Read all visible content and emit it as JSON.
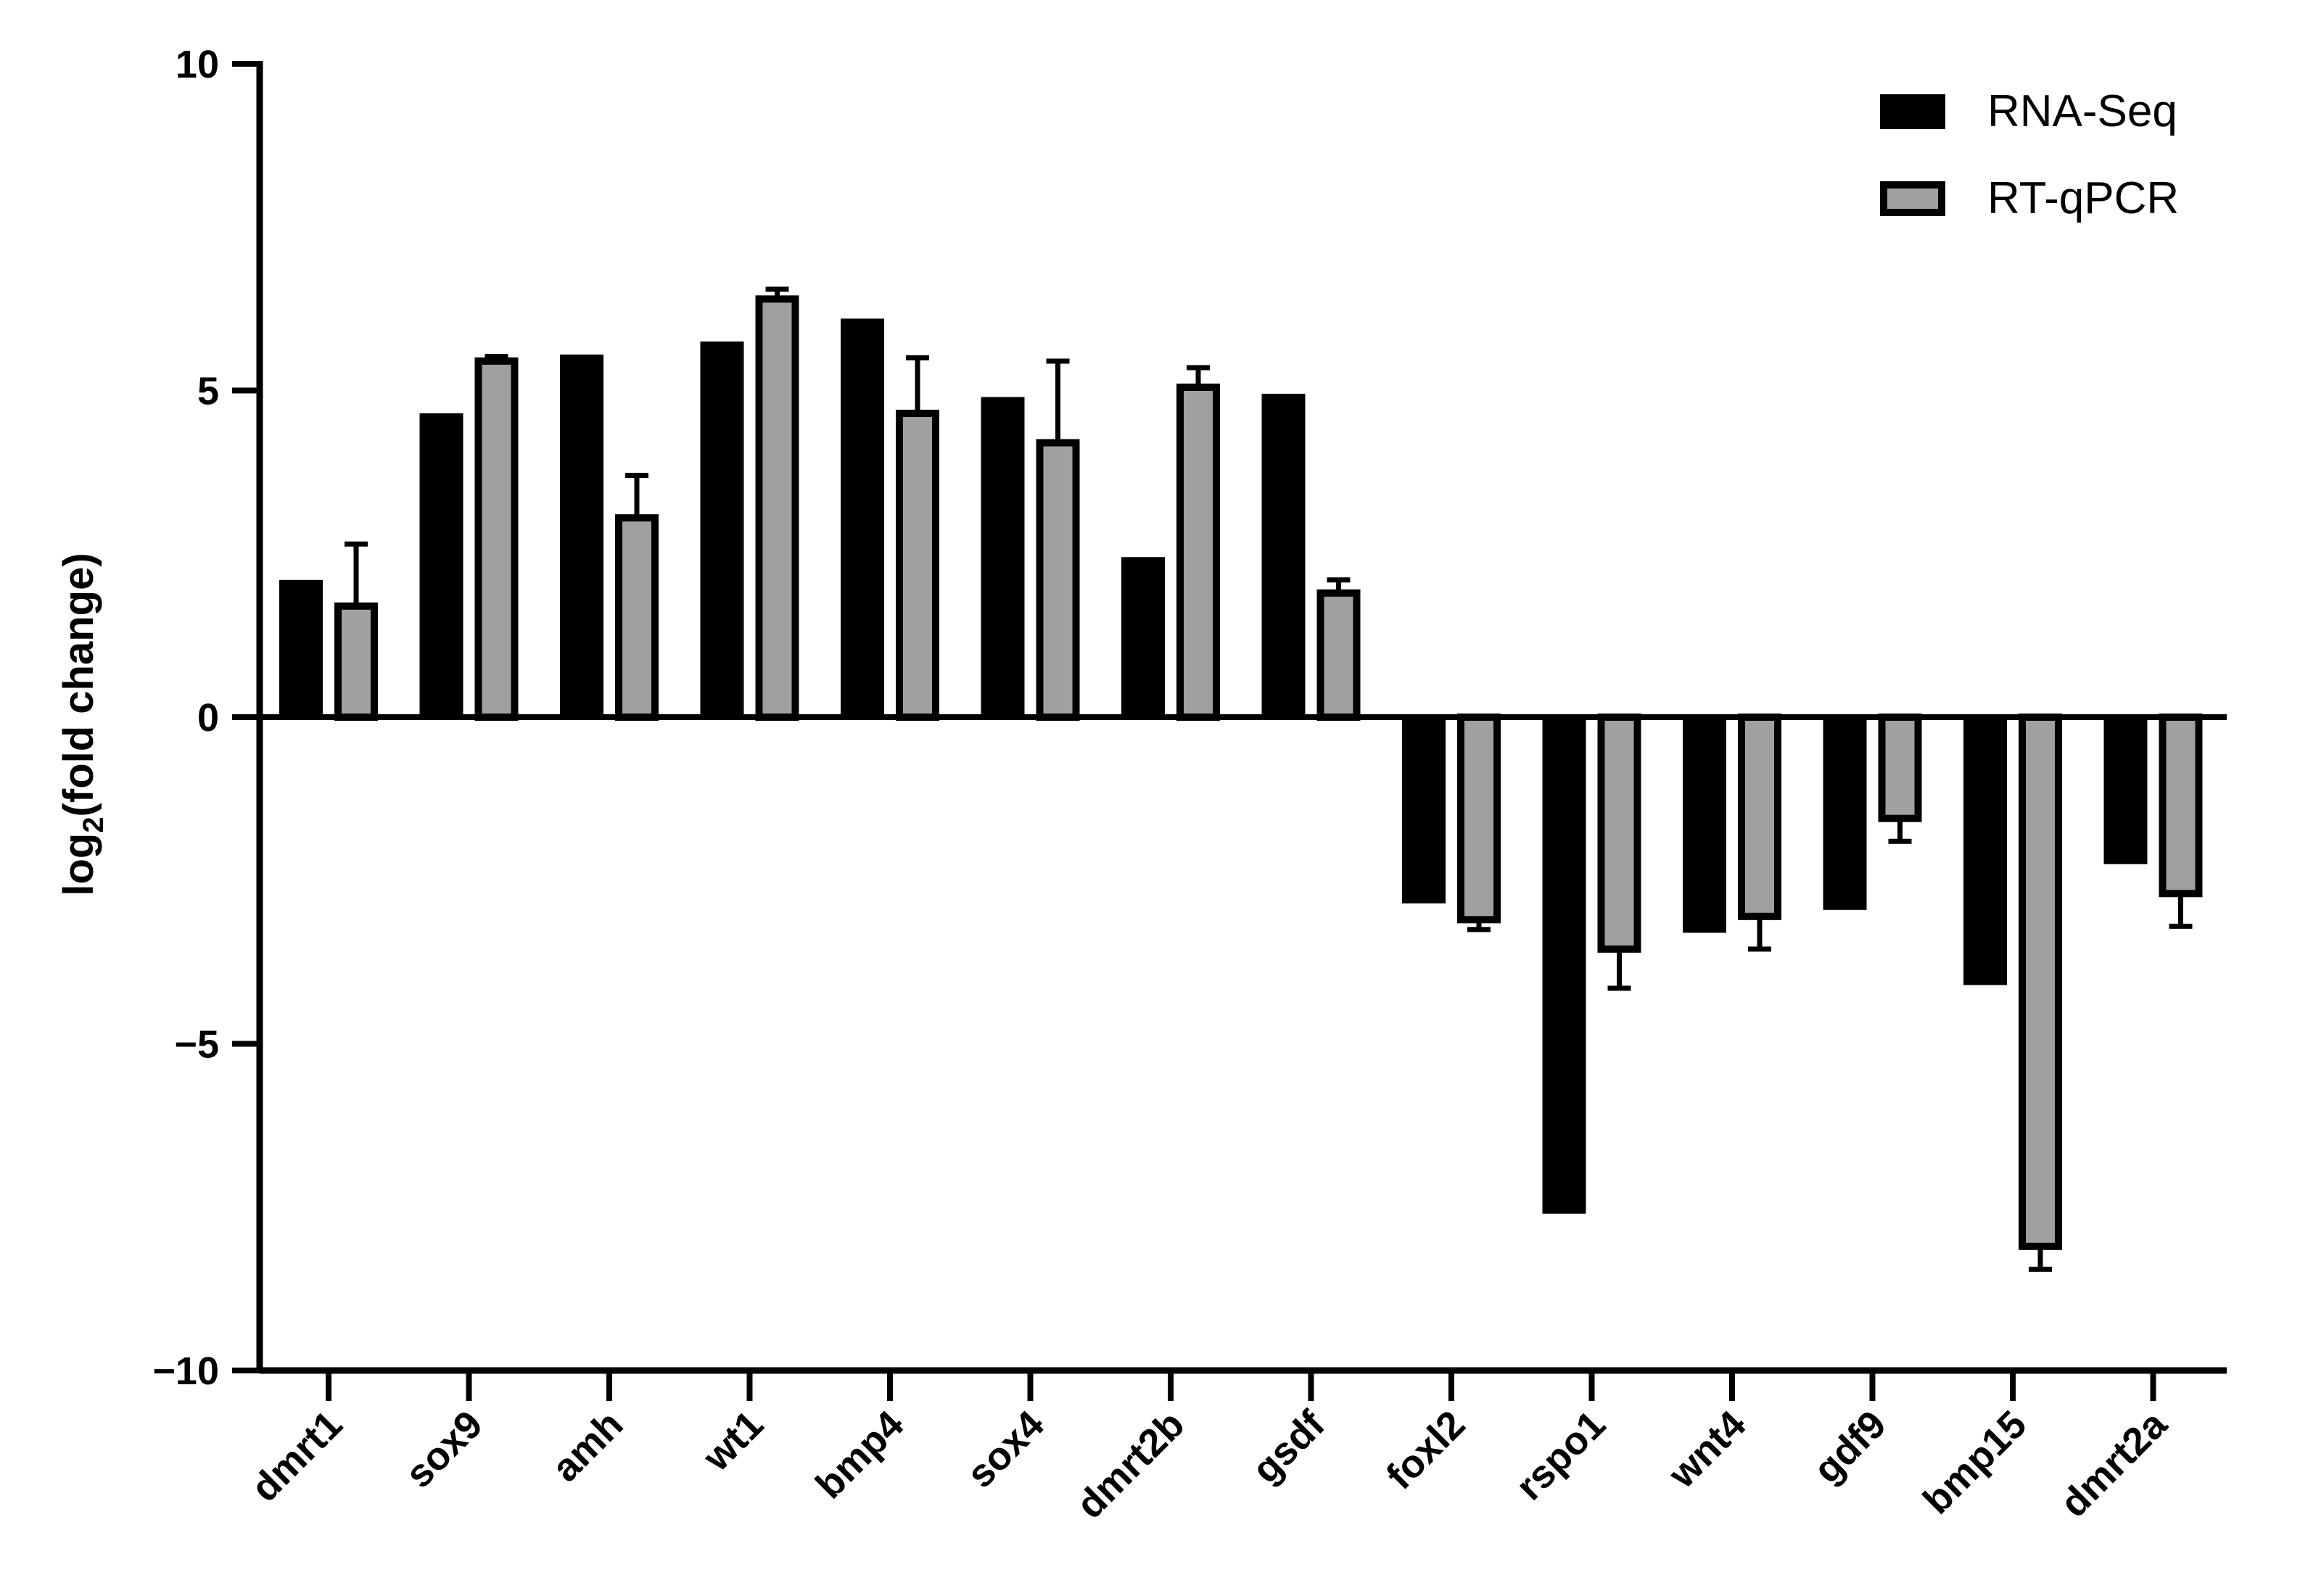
{
  "chart_data": {
    "type": "bar",
    "title": "",
    "xlabel": "",
    "ylabel": "log2(fold change)",
    "ylabel_parts": {
      "pre": "log",
      "sub": "2",
      "post": "(fold change)"
    },
    "ylim": [
      -10,
      10
    ],
    "yticks": [
      10,
      5,
      0,
      -5,
      -10
    ],
    "ytick_labels": [
      "10",
      "5",
      "0",
      "−5",
      "−10"
    ],
    "grid": false,
    "legend_position": "top-right",
    "categories": [
      "dmrt1",
      "sox9",
      "amh",
      "wt1",
      "bmp4",
      "sox4",
      "dmrt2b",
      "gsdf",
      "foxl2",
      "rspo1",
      "wnt4",
      "gdf9",
      "bmp15",
      "dmrt2a"
    ],
    "series": [
      {
        "name": "RNA-Seq",
        "color": "#000000",
        "values": [
          2.1,
          4.65,
          5.55,
          5.75,
          6.1,
          4.9,
          2.45,
          4.95,
          -2.85,
          -7.6,
          -3.3,
          -2.95,
          -4.1,
          -2.25
        ]
      },
      {
        "name": "RT-qPCR",
        "color": "#a0a0a0",
        "edge": "#000000",
        "values": [
          1.7,
          5.45,
          3.05,
          6.4,
          4.65,
          4.2,
          5.05,
          1.9,
          -3.1,
          -3.55,
          -3.05,
          -1.55,
          -8.1,
          -2.7
        ],
        "errors": [
          0.95,
          0.07,
          0.65,
          0.15,
          0.85,
          1.25,
          0.3,
          0.2,
          0.15,
          0.6,
          0.5,
          0.35,
          0.35,
          0.5
        ]
      }
    ]
  }
}
